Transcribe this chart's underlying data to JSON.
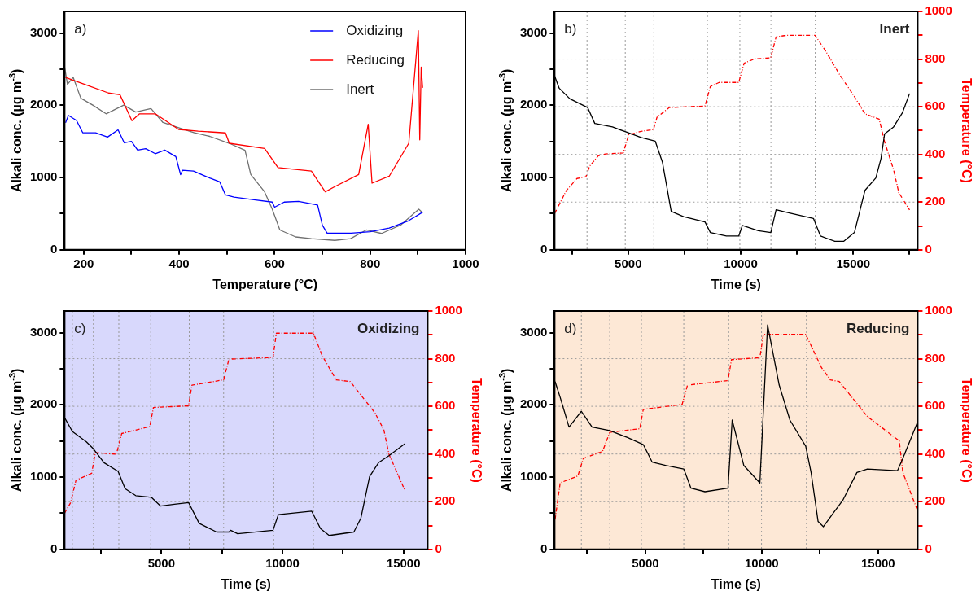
{
  "chart_data": [
    {
      "type": "line",
      "xlabel": "Temperature (°C)",
      "ylabel": "Alkali conc. (µg m$^{-3}$)",
      "annotations": [
        "a)"
      ],
      "legend": "top right",
      "xlim": [
        160,
        1000
      ],
      "xticks": [
        200,
        {
          "value": 300,
          "label": null
        },
        400,
        {
          "value": 500,
          "label": null
        },
        600,
        {
          "value": 700,
          "label": null
        },
        800,
        {
          "value": 900,
          "label": null
        },
        1000
      ],
      "ylim": [
        0,
        3300
      ],
      "yticks": [
        0,
        {
          "value": 500,
          "label": null
        },
        1000,
        {
          "value": 1500,
          "label": null
        },
        2000,
        {
          "value": 2500,
          "label": null
        },
        3000
      ],
      "series": [
        {
          "name": "Oxidizing",
          "color": "#0000ff",
          "x": [
            162,
            168,
            185,
            198,
            225,
            250,
            272,
            285,
            300,
            313,
            330,
            350,
            370,
            393,
            403,
            407,
            430,
            465,
            485,
            497,
            515,
            560,
            595,
            600,
            620,
            650,
            690,
            700,
            710,
            760,
            800,
            840,
            880,
            910
          ],
          "values": [
            1760,
            1860,
            1790,
            1620,
            1620,
            1560,
            1660,
            1480,
            1500,
            1380,
            1400,
            1330,
            1380,
            1290,
            1040,
            1100,
            1090,
            990,
            940,
            760,
            730,
            690,
            660,
            590,
            660,
            670,
            620,
            340,
            230,
            230,
            250,
            300,
            400,
            520
          ]
        },
        {
          "name": "Reducing",
          "color": "#ff0000",
          "x": [
            162,
            202,
            252,
            276,
            301,
            317,
            350,
            399,
            440,
            497,
            505,
            579,
            607,
            677,
            706,
            726,
            776,
            796,
            804,
            840,
            881,
            901,
            904,
            907,
            910
          ],
          "values": [
            2386,
            2290,
            2170,
            2146,
            1786,
            1882,
            1882,
            1666,
            1642,
            1618,
            1474,
            1402,
            1138,
            1090,
            802,
            874,
            1042,
            1738,
            922,
            1018,
            1474,
            3034,
            1522,
            2530,
            2242
          ]
        },
        {
          "name": "Inert",
          "color": "#707070",
          "x": [
            160,
            166,
            178,
            194,
            219,
            247,
            284,
            309,
            341,
            366,
            399,
            432,
            464,
            505,
            538,
            550,
            579,
            595,
            611,
            644,
            677,
            726,
            759,
            792,
            824,
            865,
            902,
            910
          ],
          "values": [
            2530,
            2290,
            2386,
            2098,
            2002,
            1882,
            2002,
            1906,
            1954,
            1762,
            1690,
            1618,
            1570,
            1474,
            1378,
            1042,
            802,
            562,
            274,
            178,
            154,
            130,
            154,
            274,
            226,
            346,
            562,
            514
          ]
        }
      ]
    },
    {
      "type": "line",
      "xlabel": "Time (s)",
      "ylabel": "Alkali conc. (µg m$^{-3}$)",
      "y2label": "Temperature (°C)",
      "annotations": [
        "b)",
        "Inert"
      ],
      "xlim": [
        1730,
        17860
      ],
      "xticks": [
        {
          "value": 2500,
          "label": null
        },
        5000,
        {
          "value": 7500,
          "label": null
        },
        10000,
        {
          "value": 12500,
          "label": null
        },
        15000,
        {
          "value": 17500,
          "label": null
        }
      ],
      "ylim": [
        0,
        3300
      ],
      "yticks": [
        0,
        {
          "value": 500,
          "label": null
        },
        1000,
        {
          "value": 1500,
          "label": null
        },
        2000,
        {
          "value": 2500,
          "label": null
        },
        3000
      ],
      "y2lim": [
        0,
        1000
      ],
      "y2ticks": [
        0,
        {
          "value": 100,
          "label": null
        },
        200,
        {
          "value": 300,
          "label": null
        },
        400,
        {
          "value": 500,
          "label": null
        },
        600,
        {
          "value": 700,
          "label": null
        },
        800,
        {
          "value": 900,
          "label": null
        },
        1000
      ],
      "ref_lines": [
        {
          "axis": "x",
          "value": 3170,
          "color": "#9a9a9a",
          "line_style": "dotted"
        },
        {
          "axis": "x",
          "value": 4870,
          "color": "#9a9a9a",
          "line_style": "dotted"
        },
        {
          "axis": "x",
          "value": 6140,
          "color": "#9a9a9a",
          "line_style": "dotted"
        },
        {
          "axis": "x",
          "value": 8520,
          "color": "#9a9a9a",
          "line_style": "dotted"
        },
        {
          "axis": "x",
          "value": 9960,
          "color": "#9a9a9a",
          "line_style": "dotted"
        },
        {
          "axis": "x",
          "value": 11340,
          "color": "#9a9a9a",
          "line_style": "dotted"
        },
        {
          "axis": "x",
          "value": 13310,
          "color": "#9a9a9a",
          "line_style": "dotted"
        },
        {
          "axis": "y2",
          "value": 200,
          "color": "#9a9a9a",
          "line_style": "dotted"
        },
        {
          "axis": "y2",
          "value": 400,
          "color": "#9a9a9a",
          "line_style": "dotted"
        },
        {
          "axis": "y2",
          "value": 600,
          "color": "#9a9a9a",
          "line_style": "dotted"
        },
        {
          "axis": "y2",
          "value": 800,
          "color": "#9a9a9a",
          "line_style": "dotted"
        }
      ],
      "series": [
        {
          "color": "#000000",
          "x": [
            1730,
            1935,
            2410,
            3200,
            3515,
            4300,
            4940,
            5570,
            6200,
            6520,
            6910,
            7460,
            8410,
            8650,
            9360,
            9910,
            10070,
            10780,
            11335,
            11570,
            12200,
            13230,
            13545,
            14180,
            14570,
            15050,
            15520,
            16000,
            16230,
            16390,
            16790,
            17180,
            17500
          ],
          "values": [
            2406,
            2236,
            2090,
            1968,
            1749,
            1700,
            1627,
            1554,
            1505,
            1213,
            531,
            458,
            385,
            239,
            190,
            190,
            336,
            263,
            239,
            555,
            507,
            434,
            190,
            117,
            117,
            239,
            823,
            994,
            1262,
            1603,
            1700,
            1895,
            2163
          ]
        },
        {
          "color": "#ff0000",
          "axis": "y2",
          "line_style": "dashed",
          "x": [
            1730,
            2250,
            2725,
            3120,
            3280,
            3670,
            3990,
            4780,
            5020,
            5570,
            6120,
            6280,
            6830,
            8410,
            8650,
            9040,
            9910,
            10150,
            10620,
            11330,
            11570,
            12040,
            13300,
            13770,
            14410,
            15040,
            15520,
            16150,
            16390,
            16790,
            17020,
            17500
          ],
          "values": [
            152,
            248,
            299,
            306,
            350,
            394,
            402,
            406,
            482,
            497,
            504,
            556,
            597,
            603,
            685,
            702,
            702,
            783,
            801,
            805,
            893,
            900,
            900,
            834,
            732,
            644,
            570,
            548,
            453,
            336,
            240,
            167
          ]
        }
      ]
    },
    {
      "type": "line",
      "xlabel": "Time (s)",
      "ylabel": "Alkali conc. (µg m$^{-3}$)",
      "y2label": "Temperature (°C)",
      "annotations": [
        "c)",
        "Oxidizing"
      ],
      "xlim": [
        1000,
        16000
      ],
      "xticks": [
        {
          "value": 2500,
          "label": null
        },
        5000,
        {
          "value": 7500,
          "label": null
        },
        10000,
        {
          "value": 12500,
          "label": null
        },
        15000
      ],
      "ylim": [
        0,
        3300
      ],
      "yticks": [
        0,
        {
          "value": 500,
          "label": null
        },
        1000,
        {
          "value": 1500,
          "label": null
        },
        2000,
        {
          "value": 2500,
          "label": null
        },
        3000
      ],
      "y2lim": [
        0,
        1000
      ],
      "y2ticks": [
        0,
        {
          "value": 100,
          "label": null
        },
        200,
        {
          "value": 300,
          "label": null
        },
        400,
        {
          "value": 500,
          "label": null
        },
        600,
        {
          "value": 700,
          "label": null
        },
        800,
        {
          "value": 900,
          "label": null
        },
        1000
      ],
      "bands": [
        {
          "axis": "x",
          "from": 1000,
          "to": 16000,
          "color": "#d8d8fc"
        }
      ],
      "ref_lines": [
        {
          "axis": "x",
          "value": 1320,
          "color": "#9a9a9a",
          "line_style": "dotted"
        },
        {
          "axis": "x",
          "value": 2190,
          "color": "#9a9a9a",
          "line_style": "dotted"
        },
        {
          "axis": "x",
          "value": 3240,
          "color": "#9a9a9a",
          "line_style": "dotted"
        },
        {
          "axis": "x",
          "value": 4560,
          "color": "#9a9a9a",
          "line_style": "dotted"
        },
        {
          "axis": "x",
          "value": 6150,
          "color": "#9a9a9a",
          "line_style": "dotted"
        },
        {
          "axis": "x",
          "value": 7570,
          "color": "#9a9a9a",
          "line_style": "dotted"
        },
        {
          "axis": "x",
          "value": 9640,
          "color": "#9a9a9a",
          "line_style": "dotted"
        },
        {
          "axis": "x",
          "value": 11280,
          "color": "#9a9a9a",
          "line_style": "dotted"
        },
        {
          "axis": "y2",
          "value": 200,
          "color": "#9a9a9a",
          "line_style": "dotted"
        },
        {
          "axis": "y2",
          "value": 400,
          "color": "#9a9a9a",
          "line_style": "dotted"
        },
        {
          "axis": "y2",
          "value": 600,
          "color": "#9a9a9a",
          "line_style": "dotted"
        },
        {
          "axis": "y2",
          "value": 800,
          "color": "#9a9a9a",
          "line_style": "dotted"
        }
      ],
      "series": [
        {
          "color": "#000000",
          "x": [
            1000,
            1320,
            1900,
            2190,
            2630,
            3210,
            3500,
            3940,
            4590,
            4960,
            5540,
            6120,
            6560,
            7280,
            7790,
            7860,
            8150,
            9610,
            9830,
            11210,
            11570,
            11930,
            12950,
            13240,
            13600,
            13970,
            14400,
            15060
          ],
          "values": [
            1824,
            1632,
            1488,
            1392,
            1200,
            1080,
            840,
            744,
            720,
            600,
            624,
            648,
            360,
            240,
            240,
            264,
            216,
            264,
            480,
            528,
            288,
            192,
            240,
            432,
            1008,
            1200,
            1296,
            1464
          ]
        },
        {
          "color": "#ff0000",
          "axis": "y2",
          "line_style": "dashed",
          "x": [
            1000,
            1250,
            1470,
            2120,
            2270,
            3140,
            3360,
            4520,
            4670,
            6120,
            6260,
            7570,
            7790,
            9610,
            9750,
            11280,
            11640,
            12220,
            12800,
            13820,
            14190,
            14400,
            15060
          ],
          "values": [
            152,
            196,
            290,
            319,
            406,
            399,
            486,
            515,
            595,
            602,
            689,
            711,
            798,
            805,
            907,
            907,
            813,
            711,
            704,
            573,
            501,
            399,
            247
          ]
        }
      ]
    },
    {
      "type": "line",
      "xlabel": "Time (s)",
      "ylabel": "Alkali conc. (µg m$^{-3}$)",
      "y2label": "Temperature (°C)",
      "annotations": [
        "d)",
        "Reducing"
      ],
      "xlim": [
        1100,
        16700
      ],
      "xticks": [
        {
          "value": 2500,
          "label": null
        },
        5000,
        {
          "value": 7500,
          "label": null
        },
        10000,
        {
          "value": 12500,
          "label": null
        },
        15000
      ],
      "ylim": [
        0,
        3300
      ],
      "yticks": [
        0,
        {
          "value": 500,
          "label": null
        },
        1000,
        {
          "value": 1500,
          "label": null
        },
        2000,
        {
          "value": 2500,
          "label": null
        },
        3000
      ],
      "y2lim": [
        0,
        1000
      ],
      "y2ticks": [
        0,
        {
          "value": 100,
          "label": null
        },
        200,
        {
          "value": 300,
          "label": null
        },
        400,
        {
          "value": 500,
          "label": null
        },
        600,
        {
          "value": 700,
          "label": null
        },
        800,
        {
          "value": 900,
          "label": null
        },
        1000
      ],
      "bands": [
        {
          "axis": "x",
          "from": 1100,
          "to": 16700,
          "color": "#fde8d6"
        }
      ],
      "ref_lines": [
        {
          "axis": "x",
          "value": 2250,
          "color": "#9a9a9a",
          "line_style": "dotted"
        },
        {
          "axis": "x",
          "value": 3470,
          "color": "#9a9a9a",
          "line_style": "dotted"
        },
        {
          "axis": "x",
          "value": 4830,
          "color": "#9a9a9a",
          "line_style": "dotted"
        },
        {
          "axis": "x",
          "value": 6650,
          "color": "#9a9a9a",
          "line_style": "dotted"
        },
        {
          "axis": "x",
          "value": 8580,
          "color": "#9a9a9a",
          "line_style": "dotted"
        },
        {
          "axis": "x",
          "value": 9990,
          "color": "#9a9a9a",
          "line_style": "dotted"
        },
        {
          "axis": "x",
          "value": 11920,
          "color": "#9a9a9a",
          "line_style": "dotted"
        },
        {
          "axis": "y2",
          "value": 200,
          "color": "#9a9a9a",
          "line_style": "dotted"
        },
        {
          "axis": "y2",
          "value": 400,
          "color": "#9a9a9a",
          "line_style": "dotted"
        },
        {
          "axis": "y2",
          "value": 600,
          "color": "#9a9a9a",
          "line_style": "dotted"
        },
        {
          "axis": "y2",
          "value": 800,
          "color": "#9a9a9a",
          "line_style": "dotted"
        }
      ],
      "series": [
        {
          "color": "#000000",
          "x": [
            1120,
            1340,
            1720,
            2250,
            2710,
            3470,
            4230,
            4910,
            5290,
            5900,
            6650,
            6960,
            7560,
            8550,
            8730,
            9230,
            9920,
            10250,
            10750,
            11210,
            11890,
            12120,
            12420,
            12650,
            13030,
            13480,
            14090,
            14540,
            15830,
            16060,
            16670
          ],
          "values": [
            2322,
            2104,
            1693,
            1911,
            1693,
            1645,
            1548,
            1451,
            1209,
            1161,
            1113,
            847,
            798,
            847,
            1790,
            1161,
            919,
            3106,
            2274,
            1790,
            1427,
            1064,
            387,
            314,
            484,
            677,
            1064,
            1113,
            1089,
            1258,
            1742
          ]
        },
        {
          "color": "#ff0000",
          "axis": "y2",
          "line_style": "dashed",
          "x": [
            1120,
            1340,
            2100,
            2330,
            3160,
            3470,
            4760,
            4910,
            6580,
            6810,
            8550,
            8700,
            9920,
            10070,
            11890,
            12570,
            12950,
            13330,
            14540,
            15910,
            16060,
            16670
          ],
          "values": [
            125,
            279,
            308,
            381,
            411,
            491,
            506,
            587,
            608,
            689,
            708,
            796,
            804,
            902,
            902,
            762,
            711,
            704,
            557,
            455,
            323,
            169
          ]
        }
      ]
    }
  ]
}
